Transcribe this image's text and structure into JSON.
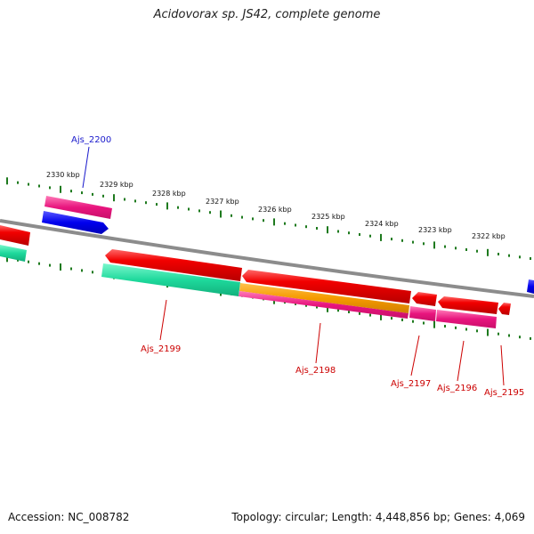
{
  "title": "Acidovorax sp. JS42, complete genome",
  "accession": "Accession: NC_008782",
  "topology": "Topology: circular; Length: 4,448,856 bp; Genes: 4,069",
  "colors": {
    "backbone": "#8c8c8c",
    "tick": "#1e7a1e",
    "forward_label": "#1a1acc",
    "reverse_label": "#cc0000"
  },
  "kbp_labels": [
    "2330 kbp",
    "2329 kbp",
    "2328 kbp",
    "2327 kbp",
    "2326 kbp",
    "2325 kbp",
    "2324 kbp",
    "2323 kbp",
    "2322 kbp"
  ],
  "gene_labels": [
    {
      "text": "Ajs_2200",
      "strand": "forward"
    },
    {
      "text": "Ajs_2199",
      "strand": "reverse"
    },
    {
      "text": "Ajs_2198",
      "strand": "reverse"
    },
    {
      "text": "Ajs_2197",
      "strand": "reverse"
    },
    {
      "text": "Ajs_2196",
      "strand": "reverse"
    },
    {
      "text": "Ajs_2195",
      "strand": "reverse"
    }
  ]
}
